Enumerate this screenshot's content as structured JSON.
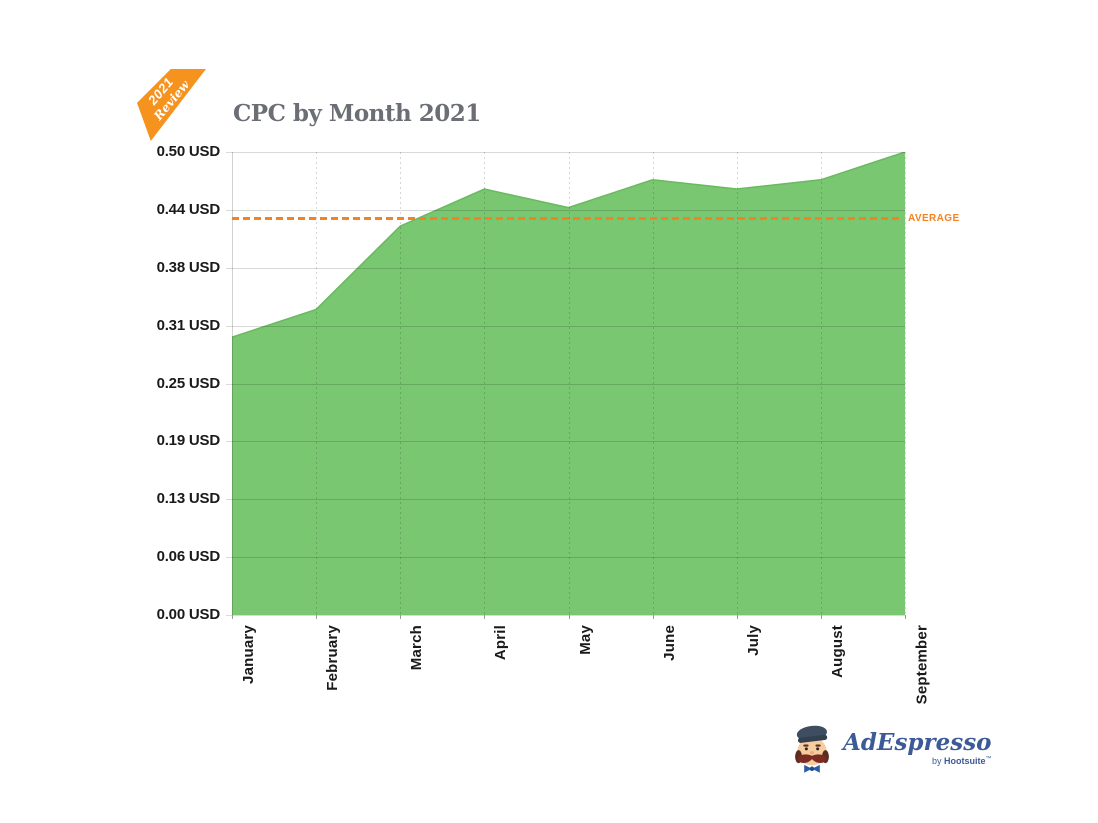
{
  "ribbon": {
    "line1": "2021",
    "line2": "Review",
    "color": "#F6921E"
  },
  "chart_data": {
    "type": "area",
    "title": "CPC by Month 2021",
    "categories": [
      "January",
      "February",
      "March",
      "April",
      "May",
      "June",
      "July",
      "August",
      "September"
    ],
    "values": [
      0.3,
      0.33,
      0.42,
      0.46,
      0.44,
      0.47,
      0.46,
      0.47,
      0.5
    ],
    "unit": "USD",
    "xlabel": "",
    "ylabel": "",
    "ylim": [
      0,
      0.5
    ],
    "y_tick_labels": [
      "0.50 USD",
      "0.44 USD",
      "0.38 USD",
      "0.31 USD",
      "0.25 USD",
      "0.19 USD",
      "0.13 USD",
      "0.06 USD",
      "0.00 USD"
    ],
    "grid": true,
    "legend_position": "none",
    "average_label": "AVERAGE",
    "area_color": "#79C771",
    "area_edge_color": "#69B95F",
    "average_line_color": "#F58220",
    "axis_text_color": "#1a1a1a",
    "title_color": "#6B6E74"
  },
  "logo": {
    "name": "AdEspresso",
    "byline_pre": "by ",
    "brand": "Hootsuite",
    "trademark": "™",
    "color": "#3D5A98"
  }
}
